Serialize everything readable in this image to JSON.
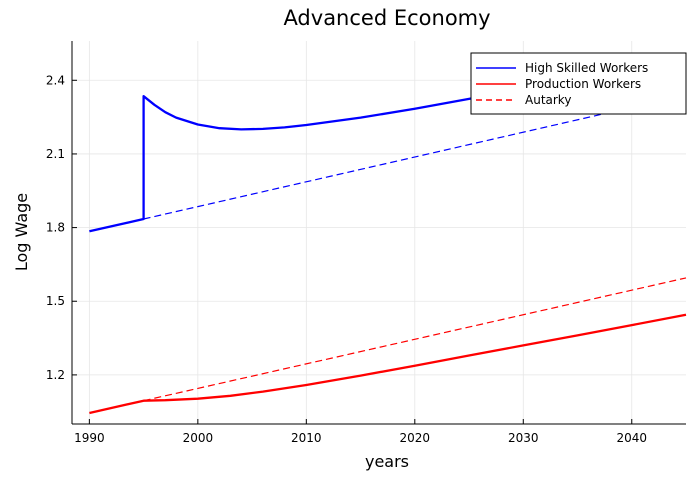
{
  "chart_data": {
    "type": "line",
    "title": "Advanced Economy",
    "xlabel": "years",
    "ylabel": "Log Wage",
    "xlim": [
      1988.4,
      2045
    ],
    "ylim": [
      1.0,
      2.56
    ],
    "x_ticks": [
      1990,
      2000,
      2010,
      2020,
      2030,
      2040
    ],
    "y_ticks": [
      1.2,
      1.5,
      1.8,
      2.1,
      2.4
    ],
    "x_tick_labels": [
      "1990",
      "2000",
      "2010",
      "2020",
      "2030",
      "2040"
    ],
    "y_tick_labels": [
      "1.2",
      "1.5",
      "1.8",
      "2.1",
      "2.4"
    ],
    "grid": true,
    "legend_position": "top-right",
    "series": [
      {
        "name": "High Skilled Workers",
        "color": "#0000ff",
        "style": "solid",
        "x": [
          1990,
          1995,
          1995,
          1996,
          1997,
          1998,
          2000,
          2002,
          2004,
          2006,
          2008,
          2010,
          2015,
          2020,
          2025,
          2030,
          2035,
          2040,
          2045
        ],
        "y": [
          1.785,
          1.835,
          2.335,
          2.3,
          2.27,
          2.248,
          2.22,
          2.205,
          2.2,
          2.202,
          2.208,
          2.218,
          2.248,
          2.284,
          2.324,
          2.367,
          2.412,
          2.459,
          2.506
        ]
      },
      {
        "name": "Production Workers",
        "color": "#ff0000",
        "style": "solid",
        "x": [
          1990,
          1995,
          1997,
          2000,
          2003,
          2006,
          2010,
          2015,
          2020,
          2025,
          2030,
          2035,
          2040,
          2045
        ],
        "y": [
          1.045,
          1.095,
          1.097,
          1.103,
          1.115,
          1.132,
          1.159,
          1.197,
          1.237,
          1.279,
          1.32,
          1.361,
          1.403,
          1.445
        ]
      },
      {
        "name": "Autarky",
        "color": "#0000ff",
        "style": "dashed",
        "x": [
          1995,
          2045
        ],
        "y": [
          1.835,
          2.34
        ]
      },
      {
        "name": "",
        "color": "#ff0000",
        "style": "dashed",
        "x": [
          1995,
          2045
        ],
        "y": [
          1.095,
          1.595
        ]
      }
    ]
  }
}
